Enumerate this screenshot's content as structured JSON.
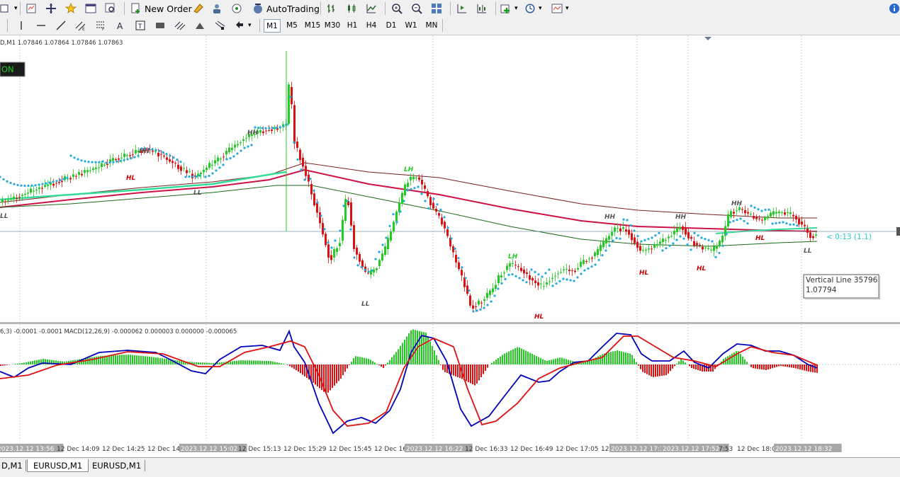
{
  "toolbar": {
    "new_order_label": "New Order",
    "autotrading_label": "AutoTrading"
  },
  "timeframes": [
    "M1",
    "M5",
    "M15",
    "M30",
    "H1",
    "H4",
    "D1",
    "W1",
    "MN"
  ],
  "active_timeframe": "M1",
  "chart": {
    "symbol_info": "D,M1  1.07846 1.07864 1.07846 1.07863",
    "ea_badge": "ON",
    "price_marker": "< 0:13 (1.1)",
    "tooltip_line1": "Vertical Line 35796",
    "tooltip_line2": "1.07794",
    "swing_labels": [
      "LL",
      "HH",
      "HL",
      "HH",
      "LL",
      "LH",
      "LL",
      "LH",
      "HL",
      "HH",
      "HL",
      "HH",
      "HL",
      "HH",
      "HL",
      "LL"
    ],
    "indicator_info": "6,3) -0.0001 -0.0001  MACD(12,26,9) -0.000062 0.000003 0.000000 -0.000065",
    "time_labels": [
      "2023.12.12 13:56",
      "12 Dec 14:09",
      "12 Dec 14:25",
      "12 Dec 14:",
      "2023.12.12 15:02",
      "12 Dec 15:13",
      "12 Dec 15:29",
      "12 Dec 15:45",
      "12 Dec 16:",
      "2023.12.12 16:22",
      "12 Dec 16:33",
      "12 Dec 16:49",
      "12 Dec 17:05",
      "12",
      "2023.12.12 17:3",
      "2023.12.12 17:52",
      "7:53",
      "12 Dec 18:09",
      "2023.12.12 18:32"
    ],
    "colors": {
      "bull": "#22cc22",
      "bear": "#dd1111",
      "sar": "#22aadd",
      "macd_main": "#0000bb",
      "macd_signal": "#dd1111"
    }
  },
  "bottom_tabs": [
    "D,M1",
    "EURUSD,M1",
    "EURUSD,M1"
  ]
}
